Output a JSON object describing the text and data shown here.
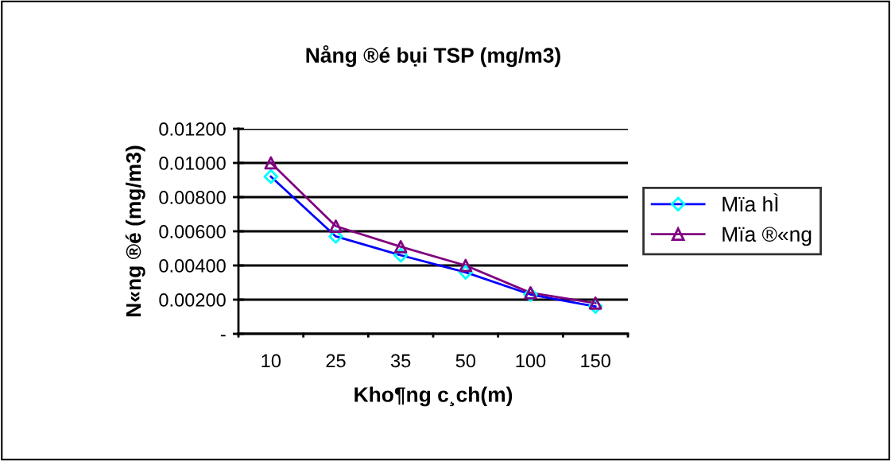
{
  "chart_data": {
    "type": "line",
    "title": "Nång ®é bụi TSP (mg/m3)",
    "xlabel": "Kho¶ng c¸ch(m)",
    "ylabel": "N«ng ®é (mg/m3)",
    "categories": [
      "10",
      "25",
      "35",
      "50",
      "100",
      "150"
    ],
    "series": [
      {
        "name": "Mïa hÌ",
        "color": "#0000ff",
        "colors": [
          "#00ffff",
          "#00ffff",
          "#00ffff",
          "#00ffff",
          "#00ffff",
          "#00ffff"
        ],
        "marker": "diamond",
        "values": [
          0.0092,
          0.0057,
          0.0046,
          0.0036,
          0.0023,
          0.0016
        ]
      },
      {
        "name": "Mïa ®«ng",
        "color": "#800080",
        "marker": "triangle",
        "values": [
          0.01,
          0.0063,
          0.0051,
          0.004,
          0.0024,
          0.0018
        ]
      }
    ],
    "ylim": [
      0,
      0.012
    ],
    "yticks": [
      {
        "value": 0,
        "label": "-"
      },
      {
        "value": 0.002,
        "label": "0.00200"
      },
      {
        "value": 0.004,
        "label": "0.00400"
      },
      {
        "value": 0.006,
        "label": "0.00600"
      },
      {
        "value": 0.008,
        "label": "0.00800"
      },
      {
        "value": 0.01,
        "label": "0.01000"
      },
      {
        "value": 0.012,
        "label": "0.01200"
      }
    ],
    "grid": "y",
    "legend": "right",
    "line_style": "solid"
  }
}
